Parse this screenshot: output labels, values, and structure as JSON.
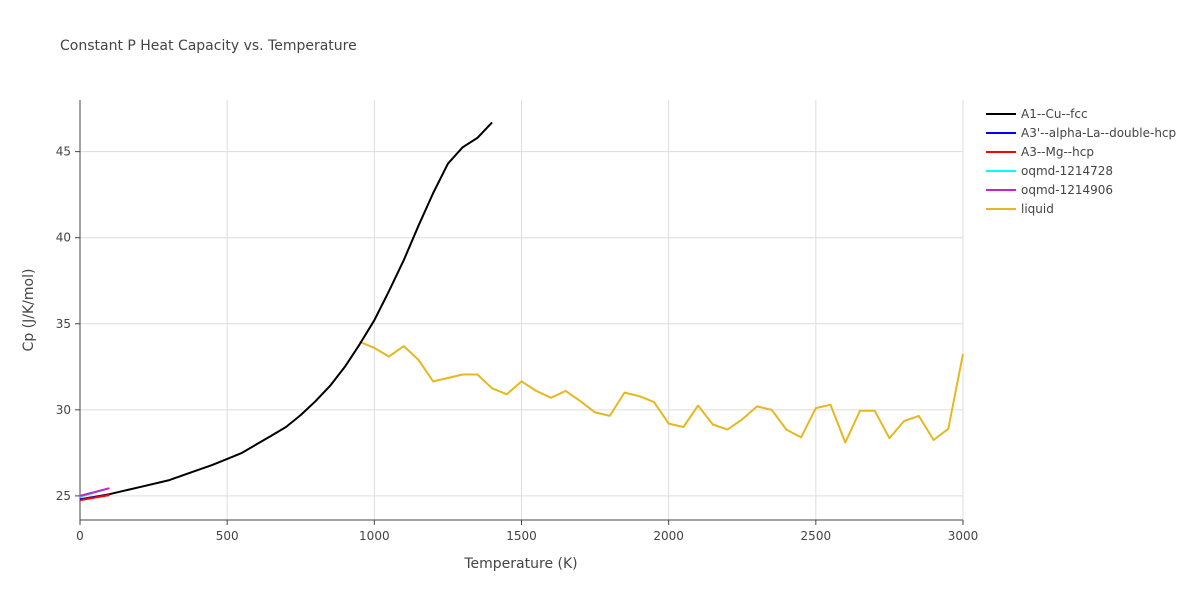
{
  "chart_data": {
    "type": "line",
    "title": "Constant P Heat Capacity vs. Temperature",
    "xlabel": "Temperature (K)",
    "ylabel": "Cp (J/K/mol)",
    "xlim": [
      0,
      3000
    ],
    "ylim": [
      23.6,
      48
    ],
    "xticks": [
      0,
      500,
      1000,
      1500,
      2000,
      2500,
      3000
    ],
    "xtick_labels": [
      "0",
      "500",
      "1000",
      "1500",
      "2000",
      "2500",
      "3000"
    ],
    "yticks": [
      25,
      30,
      35,
      40,
      45
    ],
    "ytick_labels": [
      "25",
      "30",
      "35",
      "40",
      "45"
    ],
    "grid": true,
    "legend_position": "right",
    "series": [
      {
        "name": "A1--Cu--fcc",
        "color": "#000000",
        "x": [
          0,
          50,
          100,
          150,
          200,
          300,
          400,
          450,
          500,
          550,
          600,
          650,
          700,
          750,
          800,
          850,
          900,
          950,
          1000,
          1050,
          1100,
          1150,
          1200,
          1250,
          1300,
          1350,
          1400
        ],
        "y": [
          24.8,
          24.95,
          25.1,
          25.3,
          25.5,
          25.9,
          26.5,
          26.8,
          27.15,
          27.5,
          28.0,
          28.5,
          29.0,
          29.7,
          30.5,
          31.4,
          32.5,
          33.8,
          35.2,
          36.9,
          38.7,
          40.7,
          42.6,
          44.3,
          45.25,
          45.8,
          46.7
        ]
      },
      {
        "name": "A3'--alpha-La--double-hcp",
        "color": "#0000ff",
        "x": [
          0,
          100
        ],
        "y": [
          24.8,
          25.05
        ]
      },
      {
        "name": "A3--Mg--hcp",
        "color": "#ff0000",
        "x": [
          0,
          100
        ],
        "y": [
          24.75,
          25.05
        ]
      },
      {
        "name": "oqmd-1214728",
        "color": "#00ffff",
        "x": [
          0,
          100
        ],
        "y": [
          24.95,
          25.45
        ]
      },
      {
        "name": "oqmd-1214906",
        "color": "#cc22cc",
        "x": [
          0,
          100
        ],
        "y": [
          25.0,
          25.45
        ]
      },
      {
        "name": "liquid",
        "color": "#e6b820",
        "x": [
          950,
          1000,
          1050,
          1100,
          1150,
          1200,
          1250,
          1300,
          1350,
          1400,
          1450,
          1500,
          1550,
          1600,
          1650,
          1700,
          1750,
          1800,
          1850,
          1900,
          1950,
          2000,
          2050,
          2100,
          2150,
          2200,
          2250,
          2300,
          2350,
          2400,
          2450,
          2500,
          2550,
          2600,
          2650,
          2700,
          2750,
          2800,
          2850,
          2900,
          2950,
          3000
        ],
        "y": [
          33.95,
          33.6,
          33.1,
          33.7,
          32.9,
          31.65,
          31.85,
          32.05,
          32.05,
          31.25,
          30.9,
          31.65,
          31.1,
          30.7,
          31.1,
          30.5,
          29.85,
          29.65,
          31.0,
          30.8,
          30.45,
          29.2,
          29.0,
          30.25,
          29.15,
          28.85,
          29.45,
          30.2,
          30.0,
          28.85,
          28.4,
          30.1,
          30.3,
          28.1,
          29.95,
          29.95,
          28.35,
          29.35,
          29.65,
          28.25,
          28.9,
          33.25
        ]
      }
    ]
  }
}
